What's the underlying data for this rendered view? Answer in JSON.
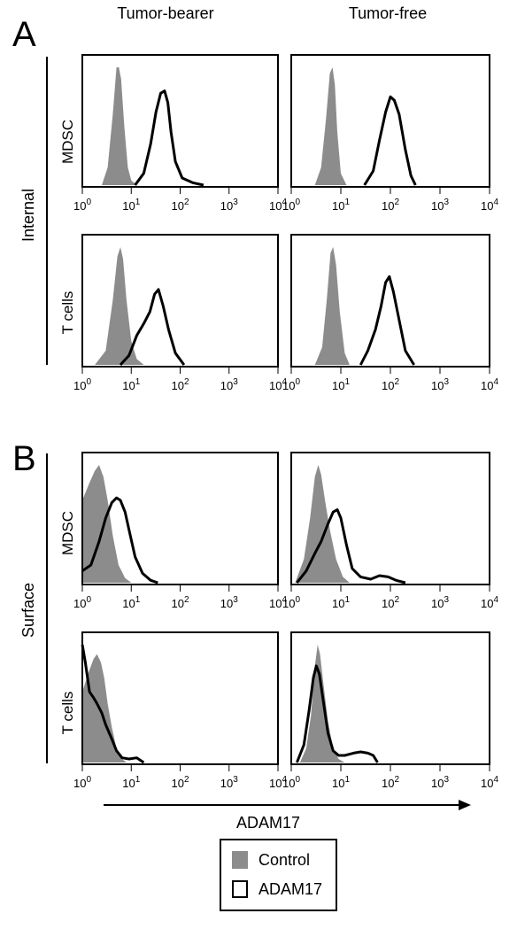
{
  "figure": {
    "panel_letters": [
      "A",
      "B"
    ],
    "column_headers": [
      "Tumor-bearer",
      "Tumor-free"
    ],
    "section_labels": [
      "Internal",
      "Surface"
    ],
    "row_labels": [
      "MDSC",
      "T cells"
    ],
    "xaxis_label": "ADAM17",
    "colors": {
      "control": "#8c8c8c",
      "adam17": "#000000"
    }
  },
  "legend": {
    "control_label": "Control",
    "adam17_label": "ADAM17"
  },
  "chart_data": [
    {
      "type": "area",
      "panel": "A",
      "section": "Internal",
      "row": "MDSC",
      "column": "Tumor-bearer",
      "xscale": "log",
      "xlim": [
        1,
        10000
      ],
      "xticks": [
        "10^0",
        "10^1",
        "10^2",
        "10^3",
        "10^4"
      ],
      "series": [
        {
          "name": "Control",
          "x": [
            2.5,
            3.3,
            4.2,
            5.0,
            5.6,
            6.2,
            7.2,
            8.5,
            10,
            13
          ],
          "y": [
            0,
            0.15,
            0.6,
            1.0,
            1.0,
            0.9,
            0.5,
            0.15,
            0.04,
            0
          ]
        },
        {
          "name": "ADAM17",
          "x": [
            12,
            18,
            25,
            32,
            40,
            48,
            56,
            65,
            80,
            110,
            180,
            300
          ],
          "y": [
            0,
            0.1,
            0.35,
            0.62,
            0.78,
            0.8,
            0.7,
            0.45,
            0.2,
            0.06,
            0.02,
            0
          ]
        }
      ]
    },
    {
      "type": "area",
      "panel": "A",
      "section": "Internal",
      "row": "MDSC",
      "column": "Tumor-free",
      "xscale": "log",
      "xlim": [
        1,
        10000
      ],
      "xticks": [
        "10^0",
        "10^1",
        "10^2",
        "10^3",
        "10^4"
      ],
      "series": [
        {
          "name": "Control",
          "x": [
            3,
            4,
            5,
            6,
            6.8,
            7.6,
            8.5,
            10,
            13
          ],
          "y": [
            0,
            0.15,
            0.55,
            0.95,
            1.0,
            0.85,
            0.45,
            0.1,
            0
          ]
        },
        {
          "name": "ADAM17",
          "x": [
            30,
            45,
            60,
            80,
            100,
            120,
            150,
            200,
            260,
            320
          ],
          "y": [
            0,
            0.12,
            0.38,
            0.62,
            0.75,
            0.72,
            0.6,
            0.3,
            0.08,
            0
          ]
        }
      ]
    },
    {
      "type": "area",
      "panel": "A",
      "section": "Internal",
      "row": "T cells",
      "column": "Tumor-bearer",
      "xscale": "log",
      "xlim": [
        1,
        10000
      ],
      "xticks": [
        "10^0",
        "10^1",
        "10^2",
        "10^3",
        "10^4"
      ],
      "series": [
        {
          "name": "Control",
          "x": [
            1.8,
            3,
            4.2,
            5.2,
            6,
            6.8,
            8,
            10,
            13,
            18
          ],
          "y": [
            0,
            0.12,
            0.55,
            0.92,
            1.0,
            0.9,
            0.55,
            0.2,
            0.05,
            0
          ]
        },
        {
          "name": "ADAM17",
          "x": [
            6,
            9,
            13,
            18,
            24,
            30,
            36,
            45,
            58,
            80,
            120
          ],
          "y": [
            0,
            0.08,
            0.25,
            0.35,
            0.45,
            0.6,
            0.64,
            0.5,
            0.3,
            0.1,
            0
          ]
        }
      ]
    },
    {
      "type": "area",
      "panel": "A",
      "section": "Internal",
      "row": "T cells",
      "column": "Tumor-free",
      "xscale": "log",
      "xlim": [
        1,
        10000
      ],
      "xticks": [
        "10^0",
        "10^1",
        "10^2",
        "10^3",
        "10^4"
      ],
      "series": [
        {
          "name": "Control",
          "x": [
            3,
            4.2,
            5.2,
            6.2,
            7,
            8,
            9.5,
            12,
            15
          ],
          "y": [
            0,
            0.15,
            0.55,
            0.95,
            1.0,
            0.85,
            0.45,
            0.1,
            0
          ]
        },
        {
          "name": "ADAM17",
          "x": [
            25,
            35,
            50,
            65,
            80,
            95,
            115,
            150,
            200,
            300
          ],
          "y": [
            0,
            0.12,
            0.3,
            0.5,
            0.7,
            0.75,
            0.62,
            0.38,
            0.12,
            0
          ]
        }
      ]
    },
    {
      "type": "area",
      "panel": "B",
      "section": "Surface",
      "row": "MDSC",
      "column": "Tumor-bearer",
      "xscale": "log",
      "xlim": [
        1,
        10000
      ],
      "xticks": [
        "10^0",
        "10^1",
        "10^2",
        "10^3",
        "10^4"
      ],
      "series": [
        {
          "name": "Control",
          "x": [
            1,
            1.4,
            1.8,
            2.2,
            2.7,
            3.3,
            4.2,
            5.5,
            7.5,
            10
          ],
          "y": [
            0.7,
            0.85,
            0.95,
            1.0,
            0.9,
            0.7,
            0.4,
            0.15,
            0.04,
            0
          ]
        },
        {
          "name": "ADAM17",
          "x": [
            1,
            1.5,
            2.2,
            3,
            4,
            5,
            6,
            7.5,
            9,
            12,
            17,
            25,
            35
          ],
          "y": [
            0.1,
            0.15,
            0.35,
            0.55,
            0.68,
            0.72,
            0.7,
            0.6,
            0.45,
            0.22,
            0.08,
            0.02,
            0
          ]
        }
      ]
    },
    {
      "type": "area",
      "panel": "B",
      "section": "Surface",
      "row": "MDSC",
      "column": "Tumor-free",
      "xscale": "log",
      "xlim": [
        1,
        10000
      ],
      "xticks": [
        "10^0",
        "10^1",
        "10^2",
        "10^3",
        "10^4"
      ],
      "series": [
        {
          "name": "Control",
          "x": [
            1.2,
            1.8,
            2.4,
            3,
            3.5,
            4,
            4.8,
            6,
            8,
            11,
            15
          ],
          "y": [
            0,
            0.2,
            0.55,
            0.9,
            1.0,
            0.92,
            0.7,
            0.45,
            0.2,
            0.05,
            0
          ]
        },
        {
          "name": "ADAM17",
          "x": [
            1.3,
            2,
            3,
            4,
            5.5,
            7,
            8.5,
            10,
            13,
            17,
            25,
            40,
            60,
            90,
            130,
            200
          ],
          "y": [
            0,
            0.1,
            0.25,
            0.35,
            0.5,
            0.6,
            0.62,
            0.55,
            0.32,
            0.12,
            0.05,
            0.03,
            0.06,
            0.05,
            0.02,
            0
          ]
        }
      ]
    },
    {
      "type": "area",
      "panel": "B",
      "section": "Surface",
      "row": "T cells",
      "column": "Tumor-bearer",
      "xscale": "log",
      "xlim": [
        1,
        10000
      ],
      "xticks": [
        "10^0",
        "10^1",
        "10^2",
        "10^3",
        "10^4"
      ],
      "series": [
        {
          "name": "Control",
          "x": [
            1,
            1.3,
            1.7,
            2,
            2.4,
            2.8,
            3.3,
            4,
            5,
            6.5,
            8
          ],
          "y": [
            0.6,
            0.75,
            0.88,
            0.92,
            0.85,
            0.72,
            0.5,
            0.3,
            0.12,
            0.03,
            0
          ]
        },
        {
          "name": "ADAM17",
          "x": [
            1,
            1.15,
            1.4,
            1.7,
            2,
            2.5,
            3,
            4,
            5,
            6.5,
            9,
            13,
            18
          ],
          "y": [
            1.0,
            0.85,
            0.6,
            0.55,
            0.5,
            0.42,
            0.32,
            0.2,
            0.1,
            0.04,
            0.03,
            0.04,
            0
          ]
        }
      ]
    },
    {
      "type": "area",
      "panel": "B",
      "section": "Surface",
      "row": "T cells",
      "column": "Tumor-free",
      "xscale": "log",
      "xlim": [
        1,
        10000
      ],
      "xticks": [
        "10^0",
        "10^1",
        "10^2",
        "10^3",
        "10^4"
      ],
      "series": [
        {
          "name": "Control",
          "x": [
            1.5,
            2,
            2.5,
            3,
            3.4,
            3.8,
            4.5,
            5.5,
            7,
            9,
            12
          ],
          "y": [
            0,
            0.12,
            0.4,
            0.82,
            1.0,
            0.92,
            0.65,
            0.35,
            0.12,
            0.03,
            0
          ]
        },
        {
          "name": "ADAM17",
          "x": [
            1.3,
            1.8,
            2.3,
            2.8,
            3.2,
            3.7,
            4.5,
            5.5,
            7,
            9,
            12,
            18,
            25,
            35,
            45,
            55
          ],
          "y": [
            0,
            0.15,
            0.45,
            0.72,
            0.82,
            0.75,
            0.5,
            0.25,
            0.1,
            0.06,
            0.06,
            0.08,
            0.09,
            0.08,
            0.06,
            0
          ]
        }
      ]
    }
  ]
}
